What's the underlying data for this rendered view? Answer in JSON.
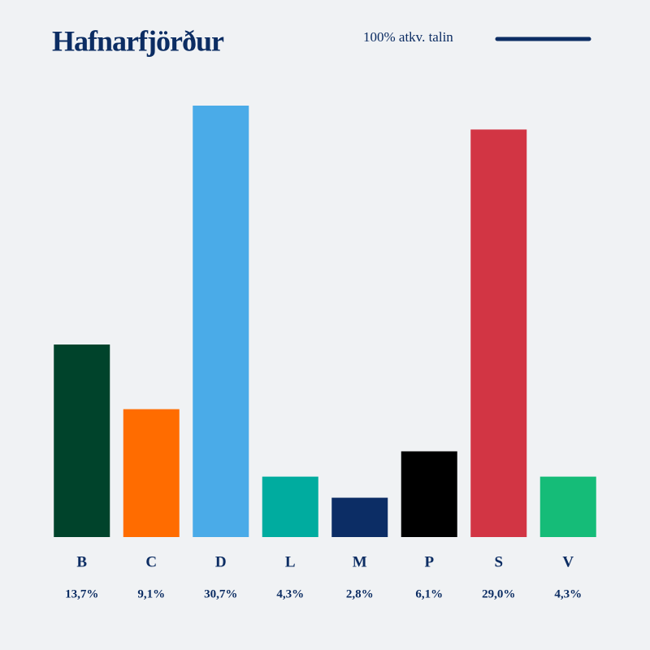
{
  "chart_data": {
    "type": "bar",
    "title": "Hafnarfjörður",
    "subtitle": "100% atkv. talin",
    "categories": [
      "B",
      "C",
      "D",
      "L",
      "M",
      "P",
      "S",
      "V"
    ],
    "values": [
      13.7,
      9.1,
      30.7,
      4.3,
      2.8,
      6.1,
      29.0,
      4.3
    ],
    "value_labels": [
      "13,7%",
      "9,1%",
      "30,7%",
      "4,3%",
      "2,8%",
      "6,1%",
      "29,0%",
      "4,3%"
    ],
    "colors": [
      "#00432b",
      "#ff6c00",
      "#4aabe8",
      "#00ac9f",
      "#0c2d65",
      "#000000",
      "#d23544",
      "#15bc78"
    ]
  }
}
